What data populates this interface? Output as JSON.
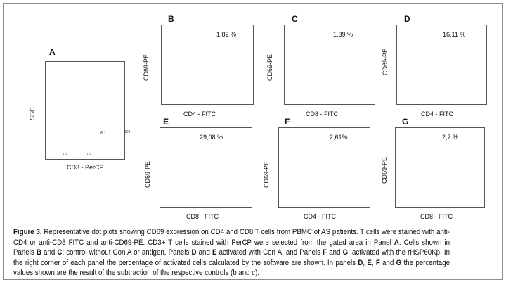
{
  "panels": {
    "A": {
      "letter": "A",
      "ylabel": "SSC",
      "xlabel": "CD3 - PerCP",
      "gate_label": "R1",
      "tick_right": "104",
      "x_ticks": [
        "10²",
        "10³"
      ]
    },
    "B": {
      "letter": "B",
      "ylabel": "CD69-PE",
      "xlabel": "CD4 - FITC",
      "percent": "1.82 %"
    },
    "C": {
      "letter": "C",
      "ylabel": "CD69-PE",
      "xlabel": "CD8 - FITC",
      "percent": "1,39 %"
    },
    "D": {
      "letter": "D",
      "ylabel": "CD69-PE",
      "xlabel": "CD4 - FITC",
      "percent": "16,11 %"
    },
    "E": {
      "letter": "E",
      "ylabel": "CD69-PE",
      "xlabel": "CD8 - FITC",
      "percent": "29,08 %"
    },
    "F": {
      "letter": "F",
      "ylabel": "CD69-PE",
      "xlabel": "CD4 - FITC",
      "percent": "2,61%"
    },
    "G": {
      "letter": "G",
      "ylabel": "CD69-PE",
      "xlabel": "CD8 - FITC",
      "percent": "2,7 %"
    }
  },
  "caption": {
    "lead": "Figure 3.",
    "t1": " Representative dot plots showing CD69 expression on CD4 and CD8 T cells from PBMC of AS patients. T cells were stained with anti-CD4 or anti-CD8 FITC and anti-CD69-PE. CD3+ T cells stained with PerCP were selected from the gated area in Panel ",
    "A": "A",
    "t2": ". Cells shown in Panels ",
    "B": "B",
    "t3": " and ",
    "C": "C",
    "t4": ": control without Con A or antigen, Panels ",
    "D": "D",
    "t5": " and ",
    "E": "E",
    "t6": " activated with Con A, and Panels ",
    "F": "F",
    "t7": " and ",
    "G": "G",
    "t8": ": activated with the rHSP60Kp. In the right corner of each panel the percentage of activated cells calculated by the software are shown. In panels ",
    "D2": "D",
    "t9": ", ",
    "E2": "E",
    "t10": ", ",
    "F2": "F",
    "t11": " and ",
    "G2": "G",
    "t12": " the percentage values shown are the result of the subtraction of the respective controls (b and c)."
  },
  "colors": {
    "dots_red": "#e0323a",
    "dots_black": "#1a1a1a",
    "axis": "#555555"
  }
}
